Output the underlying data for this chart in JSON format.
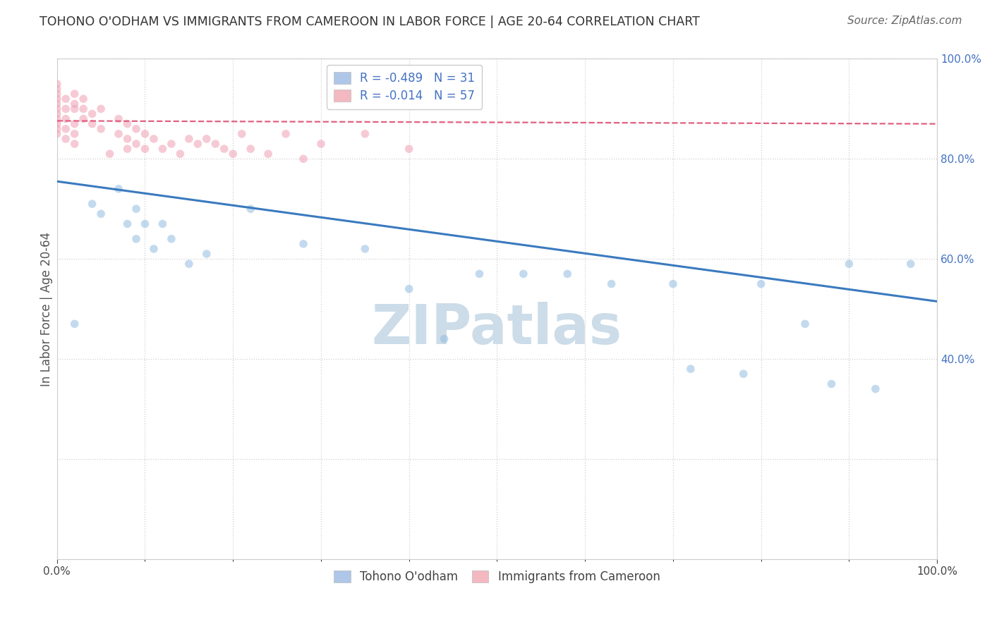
{
  "title": "TOHONO O'ODHAM VS IMMIGRANTS FROM CAMEROON IN LABOR FORCE | AGE 20-64 CORRELATION CHART",
  "source": "Source: ZipAtlas.com",
  "ylabel": "In Labor Force | Age 20-64",
  "xlim": [
    0.0,
    1.0
  ],
  "ylim": [
    0.0,
    1.0
  ],
  "xticks": [
    0.0,
    1.0
  ],
  "xticklabels": [
    "0.0%",
    "100.0%"
  ],
  "right_yticks": [
    0.4,
    0.6,
    0.8,
    1.0
  ],
  "right_yticklabels": [
    "40.0%",
    "60.0%",
    "80.0%",
    "100.0%"
  ],
  "grid_yticks": [
    0.2,
    0.4,
    0.6,
    0.8,
    1.0
  ],
  "grid_color": "#d0d0d0",
  "watermark": "ZIPatlas",
  "legend_entries": [
    {
      "label": "Tohono O'odham",
      "color": "#aec6e8",
      "R": "-0.489",
      "N": "31"
    },
    {
      "label": "Immigrants from Cameroon",
      "color": "#f4b8c1",
      "R": "-0.014",
      "N": "57"
    }
  ],
  "blue_scatter_x": [
    0.02,
    0.04,
    0.05,
    0.07,
    0.08,
    0.09,
    0.09,
    0.1,
    0.11,
    0.12,
    0.13,
    0.15,
    0.17,
    0.22,
    0.28,
    0.35,
    0.4,
    0.44,
    0.48,
    0.53,
    0.58,
    0.63,
    0.7,
    0.72,
    0.78,
    0.8,
    0.85,
    0.88,
    0.9,
    0.93,
    0.97
  ],
  "blue_scatter_y": [
    0.47,
    0.71,
    0.69,
    0.74,
    0.67,
    0.64,
    0.7,
    0.67,
    0.62,
    0.67,
    0.64,
    0.59,
    0.61,
    0.7,
    0.63,
    0.62,
    0.54,
    0.44,
    0.57,
    0.57,
    0.57,
    0.55,
    0.55,
    0.38,
    0.37,
    0.55,
    0.47,
    0.35,
    0.59,
    0.34,
    0.59
  ],
  "pink_scatter_x": [
    0.0,
    0.0,
    0.0,
    0.0,
    0.0,
    0.0,
    0.0,
    0.0,
    0.0,
    0.0,
    0.0,
    0.01,
    0.01,
    0.01,
    0.01,
    0.01,
    0.02,
    0.02,
    0.02,
    0.02,
    0.02,
    0.02,
    0.03,
    0.03,
    0.03,
    0.04,
    0.04,
    0.05,
    0.05,
    0.06,
    0.07,
    0.07,
    0.08,
    0.08,
    0.08,
    0.09,
    0.09,
    0.1,
    0.1,
    0.11,
    0.12,
    0.13,
    0.14,
    0.15,
    0.16,
    0.17,
    0.18,
    0.19,
    0.2,
    0.21,
    0.22,
    0.24,
    0.26,
    0.28,
    0.3,
    0.35,
    0.4
  ],
  "pink_scatter_y": [
    0.92,
    0.9,
    0.94,
    0.89,
    0.93,
    0.91,
    0.88,
    0.95,
    0.87,
    0.86,
    0.85,
    0.92,
    0.9,
    0.88,
    0.86,
    0.84,
    0.93,
    0.91,
    0.9,
    0.87,
    0.85,
    0.83,
    0.92,
    0.9,
    0.88,
    0.89,
    0.87,
    0.86,
    0.9,
    0.81,
    0.88,
    0.85,
    0.87,
    0.84,
    0.82,
    0.86,
    0.83,
    0.85,
    0.82,
    0.84,
    0.82,
    0.83,
    0.81,
    0.84,
    0.83,
    0.84,
    0.83,
    0.82,
    0.81,
    0.85,
    0.82,
    0.81,
    0.85,
    0.8,
    0.83,
    0.85,
    0.82
  ],
  "blue_line_x": [
    0.0,
    1.0
  ],
  "blue_line_y": [
    0.755,
    0.515
  ],
  "pink_line_x": [
    0.0,
    1.0
  ],
  "pink_line_y": [
    0.876,
    0.87
  ],
  "blue_dot_color": "#92bde0",
  "pink_dot_color": "#f0a0b4",
  "blue_line_color": "#3a7abf",
  "pink_line_color": "#e06080",
  "title_fontsize": 12.5,
  "source_fontsize": 11,
  "axis_label_fontsize": 12,
  "tick_fontsize": 11,
  "legend_fontsize": 12,
  "watermark_color": "#ccdce8",
  "watermark_fontsize": 56,
  "background_color": "#ffffff",
  "dot_size": 70,
  "dot_alpha": 0.55,
  "right_tick_color": "#4472c4"
}
